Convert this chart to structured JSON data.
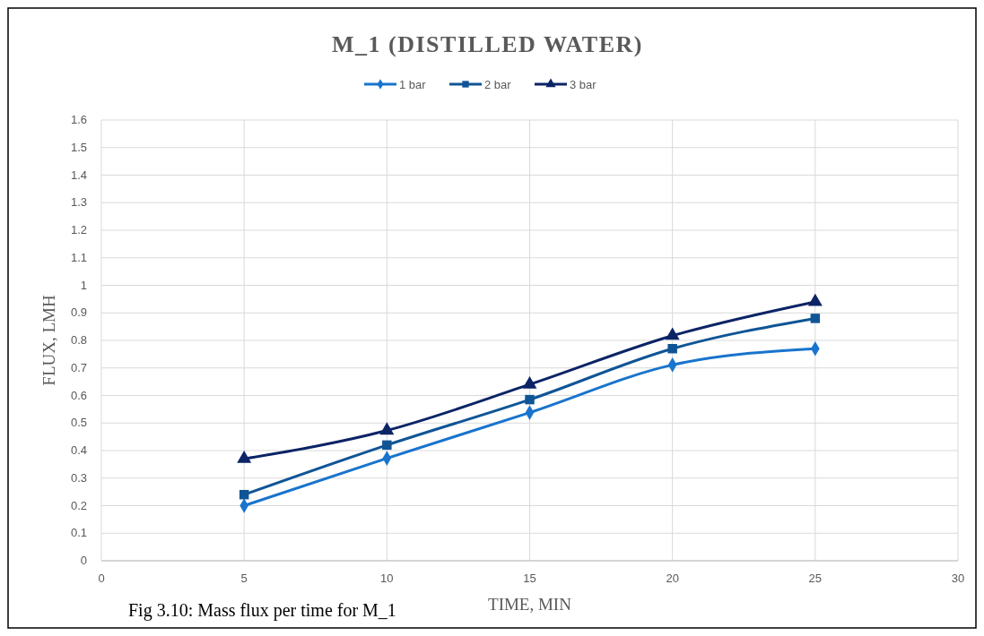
{
  "chart_data": {
    "type": "line",
    "title": "M_1 (DISTILLED WATER)",
    "xlabel": "TIME, MIN",
    "ylabel": "FLUX, LMH",
    "x": [
      5,
      10,
      15,
      20,
      25
    ],
    "series": [
      {
        "name": "1 bar",
        "color": "#1874cd",
        "marker": "diamond",
        "values": [
          0.2,
          0.372,
          0.538,
          0.711,
          0.77
        ]
      },
      {
        "name": "2 bar",
        "color": "#0f5596",
        "marker": "square",
        "values": [
          0.24,
          0.42,
          0.585,
          0.77,
          0.88
        ]
      },
      {
        "name": "3 bar",
        "color": "#0b2466",
        "marker": "triangle",
        "values": [
          0.37,
          0.473,
          0.64,
          0.817,
          0.94
        ]
      }
    ],
    "xlim": [
      0,
      30
    ],
    "xticks": [
      0,
      5,
      10,
      15,
      20,
      25,
      30
    ],
    "ylim": [
      0,
      1.6
    ],
    "yticks": [
      0,
      0.1,
      0.2,
      0.3,
      0.4,
      0.5,
      0.6,
      0.7,
      0.8,
      0.9,
      1,
      1.1,
      1.2,
      1.3,
      1.4,
      1.5,
      1.6
    ],
    "grid": true,
    "legend": "top",
    "annotations": [
      "Fig 3.10: Mass flux per time for M_1"
    ]
  }
}
